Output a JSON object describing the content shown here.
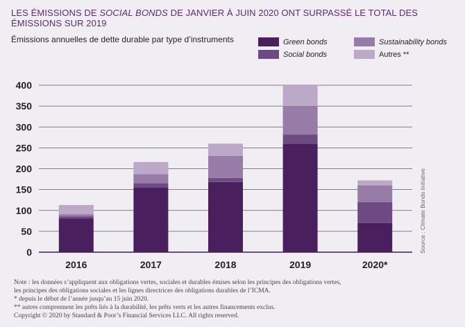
{
  "header": {
    "title_part1": "LES ÉMISSIONS DE ",
    "title_em": "SOCIAL BONDS",
    "title_part2": " DE JANVIER À JUIN 2020 ONT SURPASSÉ LE TOTAL DES ÉMISSIONS SUR 2019",
    "subtitle": "Émissions annuelles de dette durable par type d’instruments"
  },
  "legend": {
    "items": [
      {
        "key": "green",
        "label": "Green bonds",
        "color": "#4a1f5e"
      },
      {
        "key": "sust",
        "label": "Sustainability bonds",
        "color": "#967ca6"
      },
      {
        "key": "social",
        "label": "Social bonds",
        "color": "#6d4a82"
      },
      {
        "key": "autres",
        "label": "Autres **",
        "color": "#bba9c7"
      }
    ]
  },
  "source": "Source : Climate Bonds Initiative",
  "notes": {
    "line1": "Note : les données s’appliquent aux obligations vertes, sociales et durables émises selon les principes des obligations vertes,",
    "line2": "les principes des obligations sociales et les lignes directrices des obligations durables de l’ICMA.",
    "line3": "* depuis le début de l’année jusqu’au 15 juin 2020.",
    "line4": "** autres comprennent les prêts liés à la durabilité, les prêts verts et les autres financements exclus.",
    "copyright": "Copyright © 2020 by Standard & Poor’s Financial Services LLC. All rights reserved."
  },
  "chart_data": {
    "type": "bar",
    "stacked": true,
    "title": "Émissions annuelles de dette durable par type d’instruments",
    "categories": [
      "2016",
      "2017",
      "2018",
      "2019",
      "2020*"
    ],
    "series": [
      {
        "name": "Green bonds",
        "color": "#4a1f5e",
        "values": [
          81,
          155,
          168,
          260,
          70
        ]
      },
      {
        "name": "Social bonds",
        "color": "#6d4a82",
        "values": [
          5,
          10,
          10,
          22,
          50
        ]
      },
      {
        "name": "Sustainability bonds",
        "color": "#967ca6",
        "values": [
          5,
          22,
          53,
          68,
          40
        ]
      },
      {
        "name": "Autres **",
        "color": "#bba9c7",
        "values": [
          22,
          29,
          29,
          50,
          12
        ]
      }
    ],
    "ylim": [
      0,
      400
    ],
    "yticks": [
      0,
      50,
      100,
      150,
      200,
      250,
      300,
      350,
      400
    ],
    "grid": true,
    "legend": "top-right"
  }
}
